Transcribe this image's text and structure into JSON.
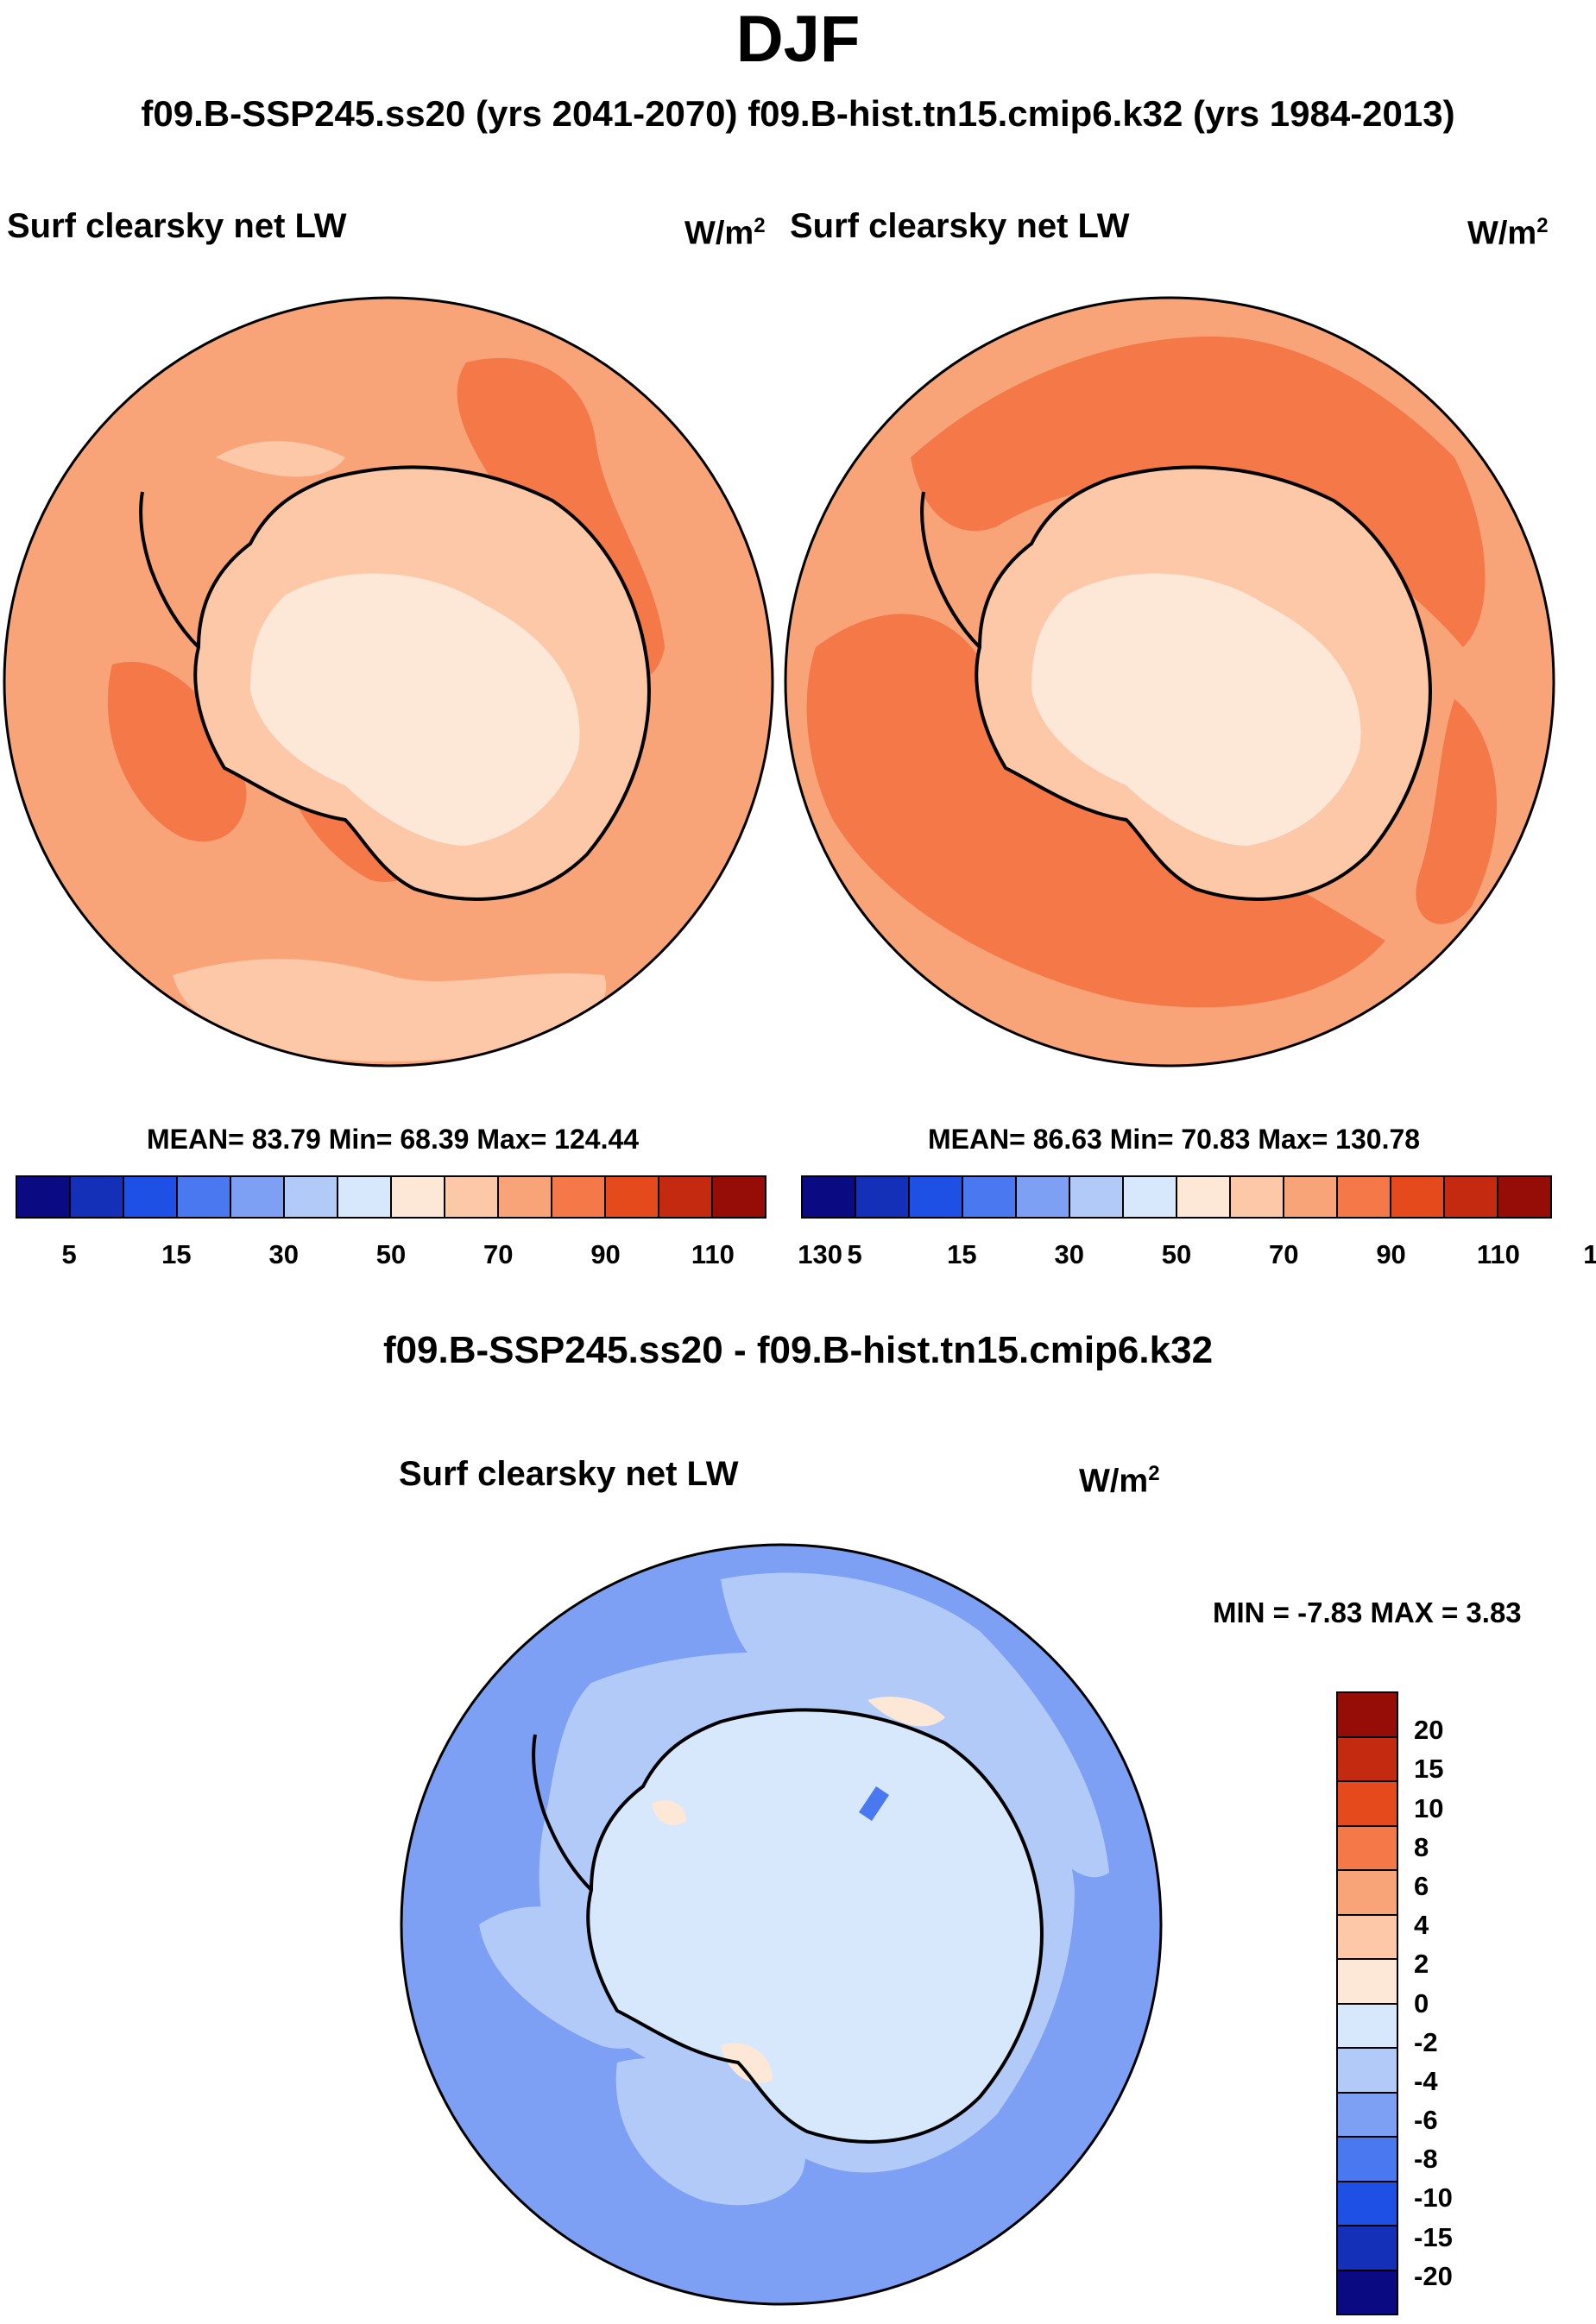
{
  "header": {
    "season": "DJF",
    "cases": "f09.B-SSP245.ss20 (yrs 2041-2070)  f09.B-hist.tn15.cmip6.k32 (yrs 1984-2013)"
  },
  "panels": [
    {
      "label": "Surf clearsky net LW",
      "units_base": "W/m",
      "units_exp": "2",
      "stats": "MEAN=  83.79  Min=  68.39  Max= 124.44"
    },
    {
      "label": "Surf clearsky net LW",
      "units_base": "W/m",
      "units_exp": "2",
      "stats": "MEAN=  86.63  Min=  70.83  Max= 130.78"
    }
  ],
  "diff": {
    "title": "f09.B-SSP245.ss20 - f09.B-hist.tn15.cmip6.k32",
    "label": "Surf clearsky net LW",
    "units_base": "W/m",
    "units_exp": "2",
    "minmax": "MIN =  -7.83 MAX =   3.83"
  },
  "colorbar_abs": {
    "colors": [
      "#0a0a82",
      "#1530b8",
      "#1f50e6",
      "#4a78f0",
      "#7ea0f4",
      "#b2caf8",
      "#d8e8fc",
      "#fde8d8",
      "#fcc8a8",
      "#f8a478",
      "#f47848",
      "#e44a1c",
      "#c42a10",
      "#960c06"
    ],
    "ticks": [
      "5",
      "15",
      "30",
      "50",
      "70",
      "90",
      "110",
      "130"
    ]
  },
  "colorbar_diff": {
    "colors": [
      "#960c06",
      "#c42a10",
      "#e44a1c",
      "#f47848",
      "#f8a478",
      "#fcc8a8",
      "#fde8d8",
      "#d8e8fc",
      "#b2caf8",
      "#7ea0f4",
      "#4a78f0",
      "#1f50e6",
      "#1530b8",
      "#0a0a82"
    ],
    "ticks": [
      "20",
      "15",
      "10",
      "8",
      "6",
      "4",
      "2",
      "0",
      "-2",
      "-4",
      "-6",
      "-8",
      "-10",
      "-15",
      "-20"
    ]
  }
}
